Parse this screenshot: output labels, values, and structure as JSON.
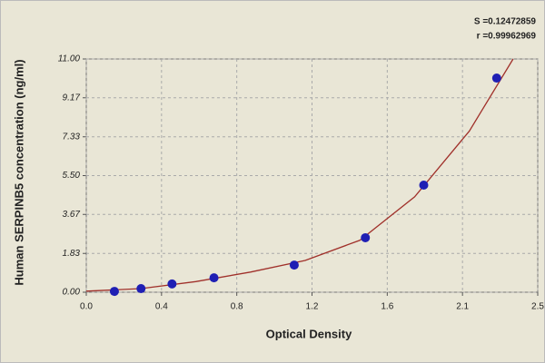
{
  "chart_data": {
    "type": "scatter",
    "xlabel": "Optical Density",
    "ylabel": "Human SERPINB5 concentration (ng/ml)",
    "annotations": [
      "S =0.12472859",
      "r =0.99962969"
    ],
    "xlim": [
      0,
      2.475
    ],
    "ylim": [
      0,
      11
    ],
    "xticks": [
      {
        "value": 0,
        "label": "0.0"
      },
      {
        "value": 0.4125,
        "label": "0.4"
      },
      {
        "value": 0.825,
        "label": "0.8"
      },
      {
        "value": 1.2375,
        "label": "1.2"
      },
      {
        "value": 1.65,
        "label": "1.6"
      },
      {
        "value": 2.0625,
        "label": "2.1"
      },
      {
        "value": 2.475,
        "label": "2.5"
      }
    ],
    "yticks": [
      {
        "value": 0,
        "label": "0.00"
      },
      1.83,
      3.67,
      {
        "value": 5.5,
        "label": "5.50"
      },
      7.33,
      9.17,
      {
        "value": 11,
        "label": "11.00"
      }
    ],
    "grid": true,
    "series": [
      {
        "color": "#1f1fb4",
        "x": [
          0.154,
          0.3,
          0.47,
          0.7,
          1.14,
          1.53,
          1.85,
          2.25
        ],
        "values": [
          0.04,
          0.17,
          0.39,
          0.68,
          1.28,
          2.57,
          5.05,
          10.1
        ]
      }
    ],
    "curve": {
      "color": "#a0302a",
      "x": [
        0,
        0.3,
        0.6,
        0.9,
        1.2,
        1.5,
        1.8,
        2.1,
        2.34
      ],
      "values": [
        0.05,
        0.17,
        0.5,
        0.95,
        1.5,
        2.45,
        4.5,
        7.6,
        11.0
      ]
    }
  }
}
